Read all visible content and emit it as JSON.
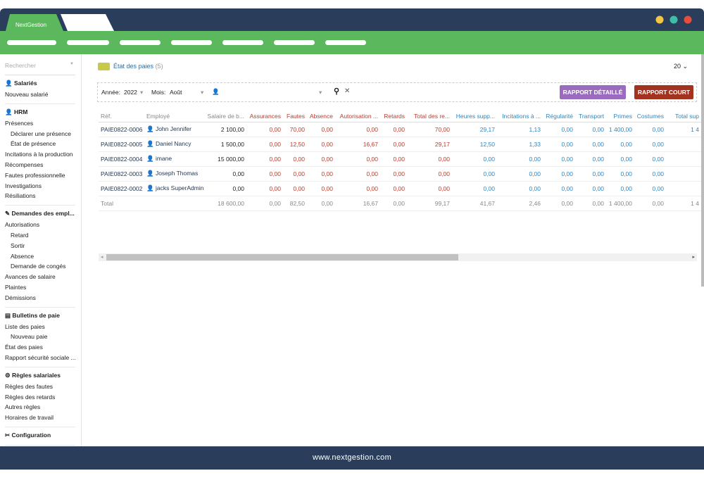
{
  "window": {
    "tab": "NextGestion",
    "footer": "www.nextgestion.com"
  },
  "sidebar": {
    "search": "Rechercher",
    "groups": [
      {
        "title": "Salariés",
        "items": [
          "Nouveau salarié"
        ]
      },
      {
        "title": "HRM",
        "items": [
          {
            "label": "Présences",
            "children": [
              "Déclarer une présence",
              "État de présence"
            ]
          },
          "Incitations à la production",
          "Récompenses",
          "Fautes professionnelle",
          "Investigations",
          "Résiliations"
        ]
      },
      {
        "title": "Demandes des empl...",
        "items": [
          {
            "label": "Autorisations",
            "children": [
              "Retard",
              "Sortir",
              "Absence",
              "Demande de congés"
            ]
          },
          "Avances de salaire",
          "Plaintes",
          "Démissions"
        ]
      },
      {
        "title": "Bulletins de paie",
        "items": [
          {
            "label": "Liste des paies",
            "children": [
              "Nouveau paie"
            ]
          },
          "État des paies",
          "Rapport sécurité sociale ..."
        ]
      },
      {
        "title": "Règles salariales",
        "items": [
          "Règles des fautes",
          "Règles des retards",
          "Autres règles",
          "Horaires de travail"
        ]
      },
      {
        "title": "Configuration",
        "items": []
      }
    ]
  },
  "main": {
    "title": "État des paies",
    "count": "(5)",
    "page_size": "20",
    "filters": {
      "year_label": "Année:",
      "year": "2022",
      "month_label": "Mois:",
      "month": "Août"
    },
    "buttons": [
      "RAPPORT DÉTAILLÉ",
      "RAPPORT COURT"
    ],
    "table": {
      "headers": [
        "Réf.",
        "Employé",
        "Salaire de b...",
        "Assurances",
        "Fautes",
        "Absence",
        "Autorisation ...",
        "Retards",
        "Total des re...",
        "Heures supp...",
        "Incitations à ...",
        "Régularité",
        "Transport",
        "Primes",
        "Costumes",
        "Total sup"
      ],
      "rows": [
        [
          "PAIE0822-0006",
          "John Jennifer",
          "2 100,00",
          "0,00",
          "70,00",
          "0,00",
          "0,00",
          "0,00",
          "70,00",
          "29,17",
          "1,13",
          "0,00",
          "0,00",
          "1 400,00",
          "0,00",
          "1 4"
        ],
        [
          "PAIE0822-0005",
          "Daniel Nancy",
          "1 500,00",
          "0,00",
          "12,50",
          "0,00",
          "16,67",
          "0,00",
          "29,17",
          "12,50",
          "1,33",
          "0,00",
          "0,00",
          "0,00",
          "0,00"
        ],
        [
          "PAIE0822-0004",
          "imane",
          "15 000,00",
          "0,00",
          "0,00",
          "0,00",
          "0,00",
          "0,00",
          "0,00",
          "0,00",
          "0,00",
          "0,00",
          "0,00",
          "0,00",
          "0,00"
        ],
        [
          "PAIE0822-0003",
          "Joseph Thomas",
          "0,00",
          "0,00",
          "0,00",
          "0,00",
          "0,00",
          "0,00",
          "0,00",
          "0,00",
          "0,00",
          "0,00",
          "0,00",
          "0,00",
          "0,00"
        ],
        [
          "PAIE0822-0002",
          "jacks SuperAdmin",
          "0,00",
          "0,00",
          "0,00",
          "0,00",
          "0,00",
          "0,00",
          "0,00",
          "0,00",
          "0,00",
          "0,00",
          "0,00",
          "0,00",
          "0,00"
        ]
      ],
      "total": {
        "label": "Total",
        "cells": [
          "18 600,00",
          "0,00",
          "82,50",
          "0,00",
          "16,67",
          "0,00",
          "99,17",
          "41,67",
          "2,46",
          "0,00",
          "0,00",
          "1 400,00",
          "0,00",
          "1 4"
        ]
      }
    }
  }
}
